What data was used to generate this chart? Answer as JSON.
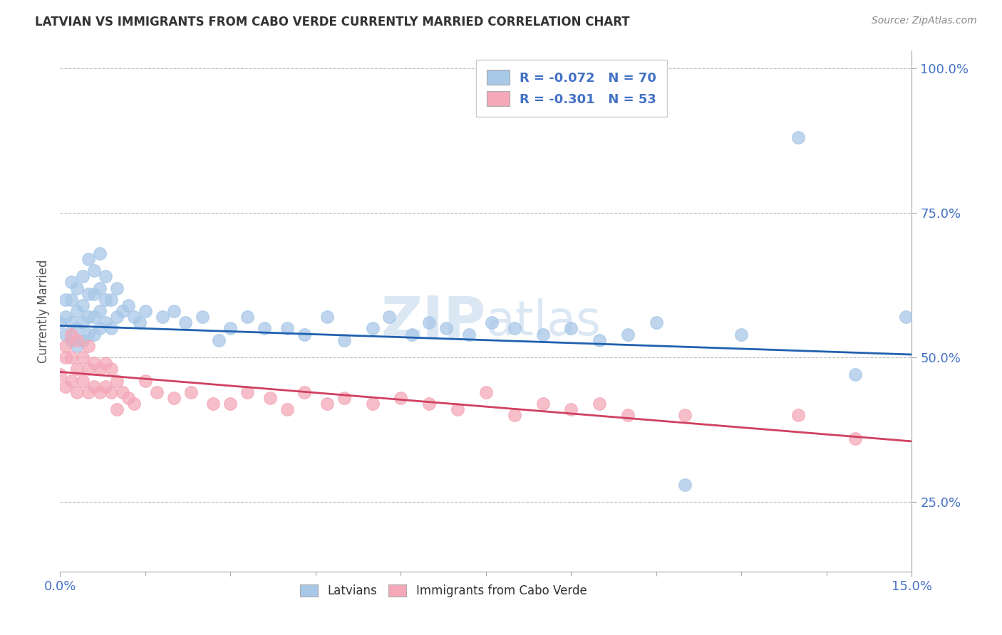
{
  "title": "LATVIAN VS IMMIGRANTS FROM CABO VERDE CURRENTLY MARRIED CORRELATION CHART",
  "source_text": "Source: ZipAtlas.com",
  "ylabel_label": "Currently Married",
  "xmin": 0.0,
  "xmax": 0.15,
  "ymin": 0.13,
  "ymax": 1.03,
  "yticks": [
    0.25,
    0.5,
    0.75,
    1.0
  ],
  "ytick_labels": [
    "25.0%",
    "50.0%",
    "75.0%",
    "100.0%"
  ],
  "xtick_labels": [
    "0.0%",
    "15.0%"
  ],
  "legend_r1": "R = -0.072",
  "legend_n1": "N = 70",
  "legend_r2": "R = -0.301",
  "legend_n2": "N = 53",
  "color_blue": "#a8c8e8",
  "color_pink": "#f4a8b8",
  "line_blue": "#2060b0",
  "line_pink": "#d04060",
  "watermark_color": "#c5d8ee",
  "latvian_x": [
    0.0,
    0.001,
    0.001,
    0.001,
    0.002,
    0.002,
    0.002,
    0.002,
    0.003,
    0.003,
    0.003,
    0.003,
    0.004,
    0.004,
    0.004,
    0.004,
    0.005,
    0.005,
    0.005,
    0.005,
    0.006,
    0.006,
    0.006,
    0.006,
    0.007,
    0.007,
    0.007,
    0.007,
    0.008,
    0.008,
    0.008,
    0.009,
    0.009,
    0.01,
    0.01,
    0.011,
    0.012,
    0.013,
    0.014,
    0.015,
    0.018,
    0.02,
    0.022,
    0.025,
    0.028,
    0.03,
    0.033,
    0.036,
    0.04,
    0.043,
    0.047,
    0.05,
    0.055,
    0.058,
    0.062,
    0.065,
    0.068,
    0.072,
    0.076,
    0.08,
    0.085,
    0.09,
    0.095,
    0.1,
    0.105,
    0.11,
    0.12,
    0.13,
    0.14,
    0.149
  ],
  "latvian_y": [
    0.56,
    0.54,
    0.57,
    0.6,
    0.53,
    0.56,
    0.6,
    0.63,
    0.52,
    0.55,
    0.58,
    0.62,
    0.53,
    0.56,
    0.59,
    0.64,
    0.54,
    0.57,
    0.61,
    0.67,
    0.54,
    0.57,
    0.61,
    0.65,
    0.55,
    0.58,
    0.62,
    0.68,
    0.56,
    0.6,
    0.64,
    0.55,
    0.6,
    0.57,
    0.62,
    0.58,
    0.59,
    0.57,
    0.56,
    0.58,
    0.57,
    0.58,
    0.56,
    0.57,
    0.53,
    0.55,
    0.57,
    0.55,
    0.55,
    0.54,
    0.57,
    0.53,
    0.55,
    0.57,
    0.54,
    0.56,
    0.55,
    0.54,
    0.56,
    0.55,
    0.54,
    0.55,
    0.53,
    0.54,
    0.56,
    0.28,
    0.54,
    0.88,
    0.47,
    0.57
  ],
  "cabo_x": [
    0.0,
    0.001,
    0.001,
    0.001,
    0.002,
    0.002,
    0.002,
    0.003,
    0.003,
    0.003,
    0.004,
    0.004,
    0.005,
    0.005,
    0.005,
    0.006,
    0.006,
    0.007,
    0.007,
    0.008,
    0.008,
    0.009,
    0.009,
    0.01,
    0.01,
    0.011,
    0.012,
    0.013,
    0.015,
    0.017,
    0.02,
    0.023,
    0.027,
    0.03,
    0.033,
    0.037,
    0.04,
    0.043,
    0.047,
    0.05,
    0.055,
    0.06,
    0.065,
    0.07,
    0.075,
    0.08,
    0.085,
    0.09,
    0.095,
    0.1,
    0.11,
    0.13,
    0.14
  ],
  "cabo_y": [
    0.47,
    0.5,
    0.45,
    0.52,
    0.46,
    0.5,
    0.54,
    0.44,
    0.48,
    0.53,
    0.46,
    0.5,
    0.44,
    0.48,
    0.52,
    0.45,
    0.49,
    0.44,
    0.48,
    0.45,
    0.49,
    0.44,
    0.48,
    0.41,
    0.46,
    0.44,
    0.43,
    0.42,
    0.46,
    0.44,
    0.43,
    0.44,
    0.42,
    0.42,
    0.44,
    0.43,
    0.41,
    0.44,
    0.42,
    0.43,
    0.42,
    0.43,
    0.42,
    0.41,
    0.44,
    0.4,
    0.42,
    0.41,
    0.42,
    0.4,
    0.4,
    0.4,
    0.36
  ],
  "line_blue_x0": 0.0,
  "line_blue_y0": 0.555,
  "line_blue_x1": 0.15,
  "line_blue_y1": 0.505,
  "line_pink_x0": 0.0,
  "line_pink_y0": 0.475,
  "line_pink_x1": 0.15,
  "line_pink_y1": 0.355
}
